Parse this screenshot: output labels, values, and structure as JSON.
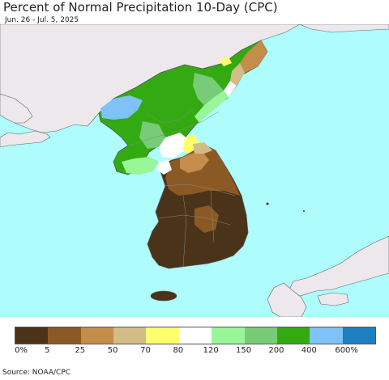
{
  "header": {
    "title": "Percent of Normal Precipitation 10-Day (CPC)",
    "subtitle": "Jun. 26 - Jul. 5, 2025"
  },
  "legend": {
    "colors": [
      "#4a3318",
      "#8b5a24",
      "#c48e4a",
      "#d4bc86",
      "#ffff6e",
      "#ffffff",
      "#98f598",
      "#78cc78",
      "#33aa11",
      "#7ec2f8",
      "#1e7fc0"
    ],
    "labels": [
      "0%",
      "5",
      "25",
      "50",
      "70",
      "80",
      "120",
      "150",
      "200",
      "400",
      "600%"
    ]
  },
  "footer": {
    "source": "Source: NOAA/CPC"
  },
  "colors": {
    "ocean": "#aefcfc",
    "land_outside": "#ece8ec",
    "border": "#555555"
  }
}
